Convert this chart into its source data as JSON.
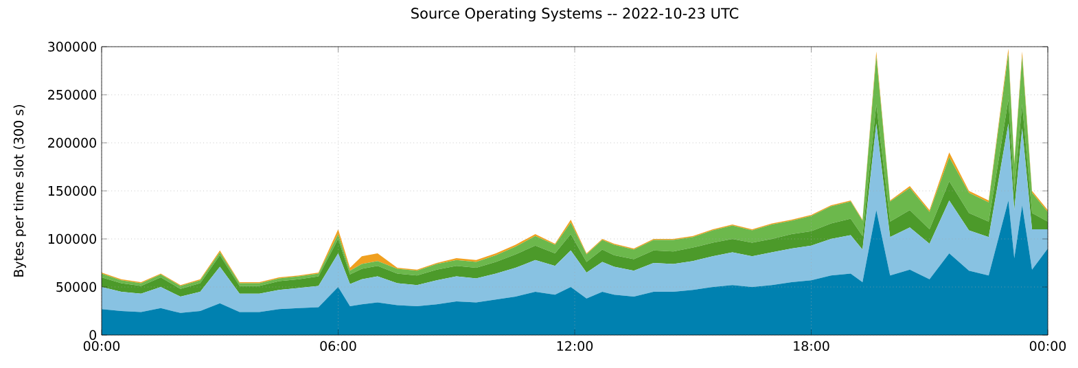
{
  "chart_data": {
    "type": "area",
    "stacked": true,
    "title": "Source Operating Systems -- 2022-10-23 UTC",
    "ylabel": "Bytes per time slot (300 s)",
    "x": [
      0,
      0.5,
      1,
      1.5,
      2,
      2.5,
      3,
      3.5,
      4,
      4.5,
      5,
      5.5,
      6,
      6.3,
      6.6,
      7,
      7.5,
      8,
      8.5,
      9,
      9.5,
      10,
      10.5,
      11,
      11.5,
      11.9,
      12.3,
      12.7,
      13,
      13.5,
      14,
      14.5,
      15,
      15.5,
      16,
      16.5,
      17,
      17.5,
      18,
      18.5,
      19,
      19.3,
      19.65,
      20,
      20.5,
      21,
      21.5,
      22,
      22.5,
      23,
      23.15,
      23.35,
      23.6,
      24
    ],
    "xlim": [
      0,
      24
    ],
    "xticks": [
      {
        "value": 0,
        "label": "00:00"
      },
      {
        "value": 6,
        "label": "06:00"
      },
      {
        "value": 12,
        "label": "12:00"
      },
      {
        "value": 18,
        "label": "18:00"
      },
      {
        "value": 24,
        "label": "00:00"
      }
    ],
    "ylim": [
      0,
      300000
    ],
    "yticks": [
      0,
      50000,
      100000,
      150000,
      200000,
      250000,
      300000
    ],
    "grid": true,
    "series": [
      {
        "color": "#0081b0",
        "values": [
          27000,
          25000,
          24000,
          28000,
          23000,
          25000,
          33000,
          24000,
          24000,
          27000,
          28000,
          29000,
          50000,
          30000,
          32000,
          34000,
          31000,
          30000,
          32000,
          35000,
          34000,
          37000,
          40000,
          45000,
          42000,
          50000,
          38000,
          45000,
          42000,
          40000,
          45000,
          45000,
          47000,
          50000,
          52000,
          50000,
          52000,
          55000,
          57000,
          62000,
          64000,
          55000,
          130000,
          62000,
          68000,
          58000,
          85000,
          67000,
          62000,
          140000,
          80000,
          135000,
          68000,
          90000
        ]
      },
      {
        "color": "#88c2e2",
        "values": [
          23000,
          20000,
          19000,
          22000,
          17000,
          20000,
          38000,
          19000,
          19000,
          20000,
          21000,
          22000,
          35000,
          23000,
          26000,
          27000,
          23000,
          22000,
          25000,
          26000,
          25000,
          27000,
          30000,
          33000,
          30000,
          38000,
          27000,
          31000,
          29000,
          27000,
          30000,
          29000,
          30000,
          32000,
          34000,
          32000,
          34000,
          35000,
          36000,
          38000,
          40000,
          34000,
          90000,
          40000,
          44000,
          37000,
          55000,
          42000,
          40000,
          80000,
          50000,
          80000,
          42000,
          20000
        ]
      },
      {
        "color": "#4c9a2a",
        "values": [
          10000,
          9000,
          8000,
          10000,
          8000,
          9000,
          12000,
          8000,
          8000,
          9000,
          9000,
          10000,
          15000,
          10000,
          11000,
          11000,
          10000,
          10000,
          11000,
          11000,
          11000,
          12000,
          14000,
          15000,
          13000,
          17000,
          11000,
          13000,
          12000,
          12000,
          13000,
          13000,
          14000,
          14000,
          14000,
          14000,
          14000,
          15000,
          15000,
          16000,
          17000,
          14000,
          20000,
          16000,
          18000,
          15000,
          20000,
          18000,
          16000,
          25000,
          20000,
          25000,
          17000,
          8000
        ]
      },
      {
        "color": "#6cb84c",
        "values": [
          4000,
          3000,
          3000,
          3000,
          3000,
          3000,
          3000,
          3000,
          3000,
          3000,
          3000,
          3000,
          5000,
          4000,
          5000,
          5000,
          5000,
          5000,
          6000,
          6000,
          6000,
          7000,
          8000,
          10000,
          9000,
          12000,
          8000,
          10000,
          11000,
          10000,
          11000,
          12000,
          11000,
          13000,
          14000,
          13000,
          15000,
          14000,
          16000,
          18000,
          18000,
          16000,
          50000,
          21000,
          23000,
          18000,
          25000,
          21000,
          20000,
          48000,
          28000,
          50000,
          21000,
          10000
        ]
      },
      {
        "color": "#f0a020",
        "values": [
          1000,
          1000,
          1000,
          1000,
          1000,
          1000,
          2000,
          1000,
          1000,
          1000,
          1000,
          1000,
          5000,
          3000,
          8000,
          8000,
          1000,
          1000,
          1000,
          2000,
          2000,
          2000,
          2000,
          2000,
          1000,
          3000,
          1000,
          1000,
          1000,
          1000,
          1000,
          1000,
          1000,
          1000,
          1000,
          1000,
          1000,
          1000,
          1000,
          1000,
          1000,
          1000,
          5000,
          1000,
          2000,
          2000,
          5000,
          2000,
          2000,
          5000,
          2000,
          5000,
          2000,
          2000
        ]
      }
    ]
  }
}
